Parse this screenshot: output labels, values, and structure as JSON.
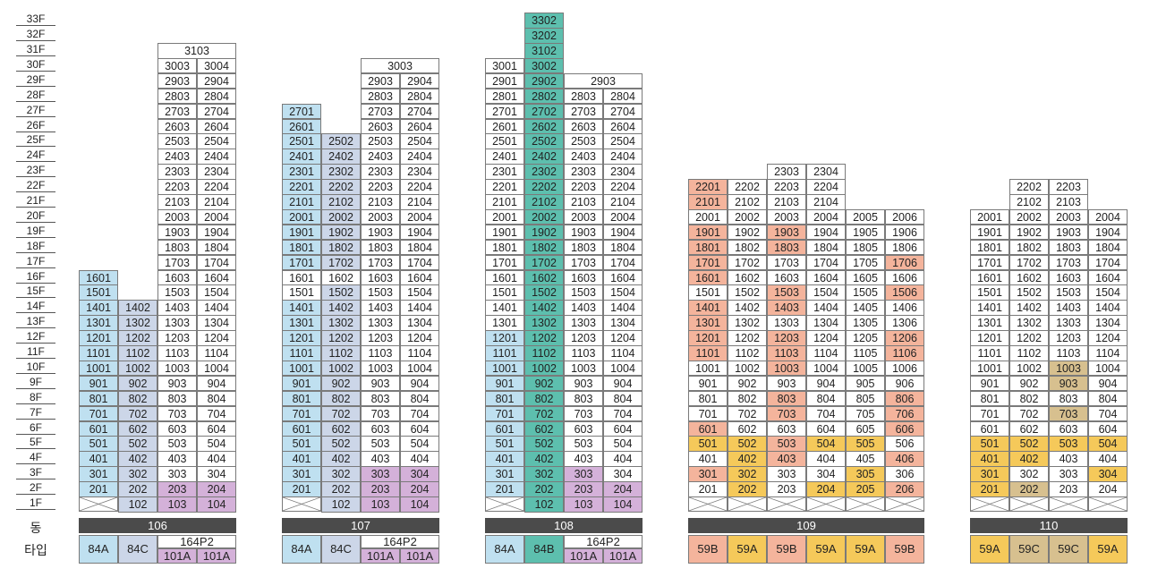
{
  "labels": {
    "dong": "동",
    "type": "타입"
  },
  "floors": [
    "1F",
    "2F",
    "3F",
    "4F",
    "5F",
    "6F",
    "7F",
    "8F",
    "9F",
    "10F",
    "11F",
    "12F",
    "13F",
    "14F",
    "15F",
    "16F",
    "17F",
    "18F",
    "19F",
    "20F",
    "21F",
    "22F",
    "23F",
    "24F",
    "25F",
    "26F",
    "27F",
    "28F",
    "29F",
    "30F",
    "31F",
    "32F",
    "33F"
  ],
  "colors": {
    "blue": "#bfe0f0",
    "lavender": "#ccd6e8",
    "teal": "#5dbfae",
    "purple": "#d4b1d9",
    "salmon": "#f4b49c",
    "yellow": "#f5c95a",
    "tan": "#d7c08f",
    "white": "#ffffff",
    "dong_bar": "#4b4b4b"
  },
  "buildings": [
    {
      "dong": "106",
      "columns": [
        {
          "x": 88,
          "w": 44,
          "top": 16,
          "base": "blue",
          "pilotis": true,
          "overrides": {}
        },
        {
          "x": 132,
          "w": 44,
          "top": 14,
          "base": "lavender",
          "pilotis": false,
          "overrides": {}
        },
        {
          "x": 176,
          "w": 44,
          "top": 30,
          "base": "white",
          "pilotis": false,
          "overrides": {
            "1": "purple",
            "2": "purple"
          },
          "merge_top": {
            "floor": 31,
            "text": "3103"
          }
        },
        {
          "x": 220,
          "w": 44,
          "top": 30,
          "base": "white",
          "pilotis": false,
          "overrides": {
            "1": "purple",
            "2": "purple"
          },
          "offset": 1
        }
      ],
      "types": [
        {
          "label": "84A",
          "color": "blue",
          "span": 1
        },
        {
          "label": "84C",
          "color": "lavender",
          "span": 1
        },
        {
          "label": "164P2",
          "color": "white",
          "span": 2,
          "sub": [
            "101A",
            "101A"
          ],
          "sub_color": "purple"
        }
      ]
    },
    {
      "dong": "107",
      "columns": [
        {
          "x": 315,
          "w": 44,
          "top": 27,
          "base": "blue",
          "pilotis": true,
          "overrides": {
            "15": "white",
            "16": "white"
          }
        },
        {
          "x": 359,
          "w": 44,
          "top": 25,
          "base": "lavender",
          "pilotis": false,
          "overrides": {
            "16": "white"
          }
        },
        {
          "x": 403,
          "w": 44,
          "top": 29,
          "base": "white",
          "pilotis": false,
          "overrides": {
            "1": "purple",
            "2": "purple",
            "3": "purple"
          },
          "merge_top": {
            "floor": 30,
            "text": "3003"
          }
        },
        {
          "x": 447,
          "w": 44,
          "top": 29,
          "base": "white",
          "pilotis": false,
          "overrides": {
            "1": "purple",
            "2": "purple",
            "3": "purple"
          },
          "offset": 1
        }
      ],
      "types": [
        {
          "label": "84A",
          "color": "blue",
          "span": 1
        },
        {
          "label": "84C",
          "color": "lavender",
          "span": 1
        },
        {
          "label": "164P2",
          "color": "white",
          "span": 2,
          "sub": [
            "101A",
            "101A"
          ],
          "sub_color": "purple"
        }
      ]
    },
    {
      "dong": "108",
      "columns": [
        {
          "x": 542,
          "w": 44,
          "top": 30,
          "base": "white",
          "pilotis": true,
          "overrides": {
            "2": "blue",
            "3": "blue",
            "4": "blue",
            "5": "blue",
            "6": "blue",
            "7": "blue",
            "8": "blue",
            "9": "blue",
            "10": "blue",
            "11": "blue",
            "12": "blue"
          }
        },
        {
          "x": 586,
          "w": 44,
          "top": 33,
          "base": "teal",
          "pilotis": false,
          "overrides": {}
        },
        {
          "x": 630,
          "w": 44,
          "top": 28,
          "base": "white",
          "pilotis": false,
          "overrides": {
            "1": "purple",
            "2": "purple",
            "3": "purple"
          },
          "merge_top": {
            "floor": 29,
            "text": "2903"
          }
        },
        {
          "x": 674,
          "w": 44,
          "top": 28,
          "base": "white",
          "pilotis": false,
          "overrides": {
            "1": "purple",
            "2": "purple"
          },
          "offset": 1
        }
      ],
      "types": [
        {
          "label": "84A",
          "color": "blue",
          "span": 1
        },
        {
          "label": "84B",
          "color": "teal",
          "span": 1
        },
        {
          "label": "164P2",
          "color": "white",
          "span": 2,
          "sub": [
            "101A",
            "101A"
          ],
          "sub_color": "purple"
        }
      ]
    },
    {
      "dong": "109",
      "columns": [
        {
          "x": 769,
          "w": 44,
          "top": 22,
          "base": "white",
          "pilotis": true,
          "overrides": {
            "3": "salmon",
            "5": "yellow",
            "6": "salmon",
            "11": "salmon",
            "12": "salmon",
            "13": "salmon",
            "14": "salmon",
            "16": "salmon",
            "17": "salmon",
            "18": "salmon",
            "19": "salmon",
            "21": "salmon",
            "22": "salmon"
          }
        },
        {
          "x": 813,
          "w": 44,
          "top": 22,
          "base": "white",
          "pilotis": true,
          "overrides": {
            "2": "yellow",
            "3": "yellow",
            "4": "yellow",
            "5": "yellow"
          }
        },
        {
          "x": 857,
          "w": 44,
          "top": 23,
          "base": "white",
          "pilotis": true,
          "overrides": {
            "4": "salmon",
            "5": "salmon",
            "7": "salmon",
            "8": "salmon",
            "10": "salmon",
            "11": "salmon",
            "12": "salmon",
            "14": "salmon",
            "15": "salmon",
            "18": "salmon",
            "19": "salmon"
          }
        },
        {
          "x": 901,
          "w": 44,
          "top": 23,
          "base": "white",
          "pilotis": true,
          "overrides": {
            "2": "yellow",
            "5": "yellow"
          }
        },
        {
          "x": 945,
          "w": 44,
          "top": 20,
          "base": "white",
          "pilotis": true,
          "overrides": {
            "2": "yellow",
            "3": "yellow",
            "5": "yellow"
          }
        },
        {
          "x": 989,
          "w": 44,
          "top": 20,
          "base": "white",
          "pilotis": true,
          "overrides": {
            "2": "salmon",
            "4": "salmon",
            "6": "salmon",
            "7": "salmon",
            "8": "salmon",
            "11": "salmon",
            "12": "salmon",
            "15": "salmon",
            "17": "salmon"
          }
        }
      ],
      "types": [
        {
          "label": "59B",
          "color": "salmon",
          "span": 1
        },
        {
          "label": "59A",
          "color": "yellow",
          "span": 1
        },
        {
          "label": "59B",
          "color": "salmon",
          "span": 1
        },
        {
          "label": "59A",
          "color": "yellow",
          "span": 1
        },
        {
          "label": "59A",
          "color": "yellow",
          "span": 1
        },
        {
          "label": "59B",
          "color": "salmon",
          "span": 1
        }
      ]
    },
    {
      "dong": "110",
      "columns": [
        {
          "x": 1084,
          "w": 44,
          "top": 20,
          "base": "white",
          "pilotis": true,
          "overrides": {
            "2": "yellow",
            "3": "yellow",
            "4": "yellow",
            "5": "yellow"
          }
        },
        {
          "x": 1128,
          "w": 44,
          "top": 22,
          "base": "white",
          "pilotis": true,
          "overrides": {
            "2": "tan",
            "4": "yellow",
            "5": "yellow"
          }
        },
        {
          "x": 1172,
          "w": 44,
          "top": 22,
          "base": "white",
          "pilotis": true,
          "overrides": {
            "5": "yellow",
            "7": "tan",
            "9": "tan",
            "10": "tan"
          }
        },
        {
          "x": 1216,
          "w": 44,
          "top": 20,
          "base": "white",
          "pilotis": true,
          "overrides": {
            "3": "yellow",
            "5": "yellow"
          }
        }
      ],
      "types": [
        {
          "label": "59A",
          "color": "yellow",
          "span": 1
        },
        {
          "label": "59C",
          "color": "tan",
          "span": 1
        },
        {
          "label": "59C",
          "color": "tan",
          "span": 1
        },
        {
          "label": "59A",
          "color": "yellow",
          "span": 1
        }
      ]
    }
  ],
  "special_units": {
    "106": {
      "col2_floor1": "102",
      "col3_floor1": "103",
      "col4_floor1": "104"
    },
    "107": {
      "col2_floor1": "102",
      "col3_floor1": "103",
      "col4_floor1": "104"
    },
    "108": {
      "col2_floor1": "102",
      "col3_floor1": "103",
      "col4_floor1": "104"
    }
  }
}
